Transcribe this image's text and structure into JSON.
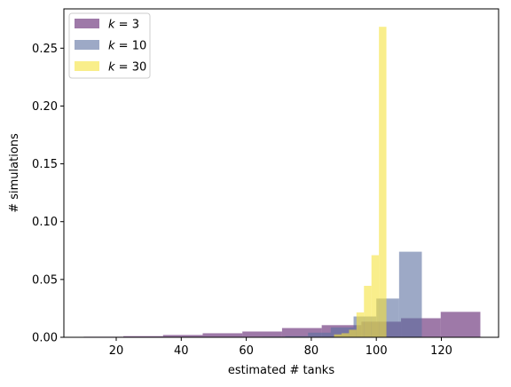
{
  "chart_data": {
    "type": "bar",
    "title": "",
    "xlabel": "estimated # tanks",
    "ylabel": "# simulations",
    "xlim": [
      3.9,
      137.6
    ],
    "ylim": [
      0,
      0.284
    ],
    "xticks": [
      20,
      40,
      60,
      80,
      100,
      120
    ],
    "xtick_labels": [
      "20",
      "40",
      "60",
      "80",
      "100",
      "120"
    ],
    "yticks": [
      0.0,
      0.05,
      0.1,
      0.15,
      0.2,
      0.25
    ],
    "ytick_labels": [
      "0.00",
      "0.05",
      "0.10",
      "0.15",
      "0.20",
      "0.25"
    ],
    "grid": false,
    "legend_placement": "top-left",
    "series": [
      {
        "name": "k = 3",
        "legend_prefix": "k",
        "legend_eq": " = ",
        "legend_value": "3",
        "color": "#5e1f6e",
        "opacity": 0.6,
        "bins": [
          {
            "x0": 10,
            "x1": 22.2,
            "value": 0.0005
          },
          {
            "x0": 22.2,
            "x1": 34.4,
            "value": 0.001
          },
          {
            "x0": 34.4,
            "x1": 46.6,
            "value": 0.002
          },
          {
            "x0": 46.6,
            "x1": 58.8,
            "value": 0.0035
          },
          {
            "x0": 58.8,
            "x1": 71,
            "value": 0.005
          },
          {
            "x0": 71,
            "x1": 83.2,
            "value": 0.008
          },
          {
            "x0": 83.2,
            "x1": 95.4,
            "value": 0.0105
          },
          {
            "x0": 95.4,
            "x1": 107.6,
            "value": 0.0135
          },
          {
            "x0": 107.6,
            "x1": 119.8,
            "value": 0.0165
          },
          {
            "x0": 119.8,
            "x1": 132,
            "value": 0.022
          }
        ]
      },
      {
        "name": "k = 10",
        "legend_prefix": "k",
        "legend_eq": " = ",
        "legend_value": "10",
        "color": "#5b6fa0",
        "opacity": 0.6,
        "bins": [
          {
            "x0": 65,
            "x1": 72,
            "value": 0.0005
          },
          {
            "x0": 72,
            "x1": 79,
            "value": 0.001
          },
          {
            "x0": 79,
            "x1": 86,
            "value": 0.004
          },
          {
            "x0": 86,
            "x1": 93,
            "value": 0.0085
          },
          {
            "x0": 93,
            "x1": 100,
            "value": 0.018
          },
          {
            "x0": 100,
            "x1": 107,
            "value": 0.0335
          },
          {
            "x0": 107,
            "x1": 114,
            "value": 0.074
          }
        ]
      },
      {
        "name": "k = 30",
        "legend_prefix": "k",
        "legend_eq": " = ",
        "legend_value": "30",
        "color": "#f5e33d",
        "opacity": 0.6,
        "bins": [
          {
            "x0": 87,
            "x1": 89.3,
            "value": 0.0025
          },
          {
            "x0": 89.3,
            "x1": 91.6,
            "value": 0.0035
          },
          {
            "x0": 91.6,
            "x1": 93.9,
            "value": 0.0065
          },
          {
            "x0": 93.9,
            "x1": 96.2,
            "value": 0.0215
          },
          {
            "x0": 96.2,
            "x1": 98.5,
            "value": 0.0445
          },
          {
            "x0": 98.5,
            "x1": 100.8,
            "value": 0.071
          },
          {
            "x0": 100.8,
            "x1": 103.1,
            "value": 0.2685
          }
        ]
      }
    ]
  }
}
